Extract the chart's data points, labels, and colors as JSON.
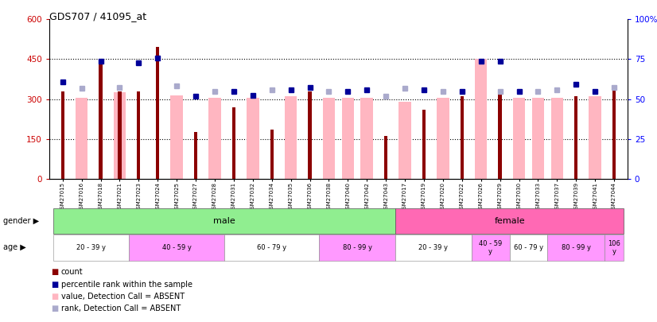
{
  "title": "GDS707 / 41095_at",
  "samples": [
    "GSM27015",
    "GSM27016",
    "GSM27018",
    "GSM27021",
    "GSM27023",
    "GSM27024",
    "GSM27025",
    "GSM27027",
    "GSM27028",
    "GSM27031",
    "GSM27032",
    "GSM27034",
    "GSM27035",
    "GSM27036",
    "GSM27038",
    "GSM27040",
    "GSM27042",
    "GSM27043",
    "GSM27017",
    "GSM27019",
    "GSM27020",
    "GSM27022",
    "GSM27026",
    "GSM27029",
    "GSM27030",
    "GSM27033",
    "GSM27037",
    "GSM27039",
    "GSM27041",
    "GSM27044"
  ],
  "count_values": [
    330,
    null,
    443,
    330,
    330,
    495,
    null,
    175,
    null,
    270,
    null,
    185,
    null,
    330,
    null,
    null,
    null,
    160,
    null,
    260,
    null,
    310,
    null,
    320,
    null,
    null,
    null,
    310,
    null,
    340
  ],
  "pink_values": [
    null,
    305,
    null,
    325,
    null,
    null,
    315,
    null,
    305,
    null,
    305,
    null,
    310,
    null,
    305,
    305,
    305,
    null,
    290,
    null,
    305,
    null,
    450,
    null,
    305,
    305,
    305,
    null,
    310,
    null
  ],
  "blue_values": [
    365,
    null,
    443,
    null,
    437,
    455,
    null,
    310,
    null,
    330,
    315,
    null,
    335,
    345,
    null,
    330,
    335,
    null,
    null,
    335,
    null,
    330,
    443,
    443,
    330,
    null,
    null,
    355,
    330,
    null
  ],
  "light_blue_values": [
    null,
    340,
    null,
    345,
    null,
    null,
    350,
    null,
    330,
    null,
    null,
    335,
    null,
    null,
    330,
    null,
    null,
    310,
    340,
    null,
    330,
    null,
    null,
    330,
    null,
    330,
    335,
    null,
    null,
    345
  ],
  "gender_groups": [
    {
      "label": "male",
      "start": 0,
      "end": 17,
      "color": "#90EE90"
    },
    {
      "label": "female",
      "start": 18,
      "end": 29,
      "color": "#FF69B4"
    }
  ],
  "age_groups": [
    {
      "label": "20 - 39 y",
      "start": 0,
      "end": 3,
      "color": "#FFFFFF"
    },
    {
      "label": "40 - 59 y",
      "start": 4,
      "end": 8,
      "color": "#FF99FF"
    },
    {
      "label": "60 - 79 y",
      "start": 9,
      "end": 13,
      "color": "#FFFFFF"
    },
    {
      "label": "80 - 99 y",
      "start": 14,
      "end": 17,
      "color": "#FF99FF"
    },
    {
      "label": "20 - 39 y",
      "start": 18,
      "end": 21,
      "color": "#FFFFFF"
    },
    {
      "label": "40 - 59\ny",
      "start": 22,
      "end": 23,
      "color": "#FF99FF"
    },
    {
      "label": "60 - 79 y",
      "start": 24,
      "end": 25,
      "color": "#FFFFFF"
    },
    {
      "label": "80 - 99 y",
      "start": 26,
      "end": 28,
      "color": "#FF99FF"
    },
    {
      "label": "106\ny",
      "start": 29,
      "end": 29,
      "color": "#FF99FF"
    }
  ],
  "ylim": [
    0,
    600
  ],
  "yticks_left": [
    0,
    150,
    300,
    450,
    600
  ],
  "yticklabels_left": [
    "0",
    "150",
    "300",
    "450",
    "600"
  ],
  "yticks_right": [
    0,
    25,
    50,
    75,
    100
  ],
  "yticklabels_right": [
    "0",
    "25",
    "50",
    "75",
    "100%"
  ],
  "color_count": "#8B0000",
  "color_pink": "#FFB6C1",
  "color_blue": "#000099",
  "color_light_blue": "#AAAACC",
  "legend_items": [
    {
      "label": "count",
      "color": "#8B0000"
    },
    {
      "label": "percentile rank within the sample",
      "color": "#000099"
    },
    {
      "label": "value, Detection Call = ABSENT",
      "color": "#FFB6C1"
    },
    {
      "label": "rank, Detection Call = ABSENT",
      "color": "#AAAACC"
    }
  ]
}
